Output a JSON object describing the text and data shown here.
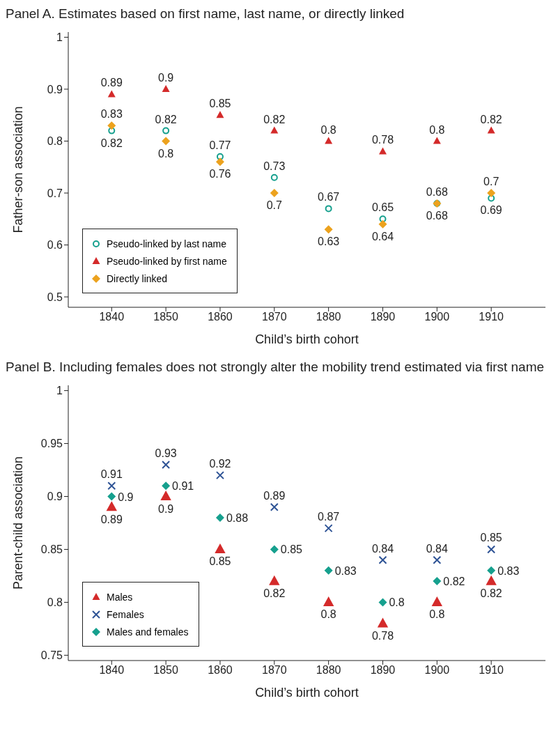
{
  "chart_data": [
    {
      "type": "scatter",
      "title": "Panel A. Estimates based on first name, last name, or directly linked",
      "xlabel": "Child’s birth cohort",
      "ylabel": "Father-son association",
      "x": [
        1840,
        1850,
        1860,
        1870,
        1880,
        1890,
        1900,
        1910
      ],
      "xlim": [
        1832,
        1920
      ],
      "xticks": [
        1840,
        1850,
        1860,
        1870,
        1880,
        1890,
        1900,
        1910
      ],
      "ylim": [
        0.48,
        1.01
      ],
      "yticks": [
        0.5,
        0.6,
        0.7,
        0.8,
        0.9,
        1
      ],
      "legend": "bottom left",
      "data_labels": true,
      "series": [
        {
          "name": "Pseudo-linked by last name",
          "color": "#16a08e",
          "marker": "circle",
          "values": [
            0.82,
            0.82,
            0.77,
            0.73,
            0.67,
            0.65,
            0.68,
            0.69
          ]
        },
        {
          "name": "Pseudo-linked by first name",
          "color": "#d42a2a",
          "marker": "triangle",
          "values": [
            0.89,
            0.9,
            0.85,
            0.82,
            0.8,
            0.78,
            0.8,
            0.82
          ]
        },
        {
          "name": "Directly linked",
          "color": "#eca21e",
          "marker": "diamond",
          "values": [
            0.83,
            0.8,
            0.76,
            0.7,
            0.63,
            0.64,
            0.68,
            0.7
          ]
        }
      ]
    },
    {
      "type": "scatter",
      "title": "Panel B. Including females does not strongly alter the mobility trend estimated via first name",
      "xlabel": "Child’s birth cohort",
      "ylabel": "Parent-child association",
      "x": [
        1840,
        1850,
        1860,
        1870,
        1880,
        1890,
        1900,
        1910
      ],
      "xlim": [
        1832,
        1920
      ],
      "xticks": [
        1840,
        1850,
        1860,
        1870,
        1880,
        1890,
        1900,
        1910
      ],
      "ylim": [
        0.745,
        1.005
      ],
      "yticks": [
        0.75,
        0.8,
        0.85,
        0.9,
        0.95,
        1
      ],
      "legend": "bottom left",
      "data_labels": true,
      "series": [
        {
          "name": "Males",
          "color": "#d42a2a",
          "marker": "triangle",
          "values": [
            0.89,
            0.9,
            0.85,
            0.82,
            0.8,
            0.78,
            0.8,
            0.82
          ]
        },
        {
          "name": "Females",
          "color": "#2e5395",
          "marker": "cross",
          "values": [
            0.91,
            0.93,
            0.92,
            0.89,
            0.87,
            0.84,
            0.84,
            0.85
          ]
        },
        {
          "name": "Males and females",
          "color": "#16a08e",
          "marker": "diamond",
          "values": [
            0.9,
            0.91,
            0.88,
            0.85,
            0.83,
            0.8,
            0.82,
            0.83
          ]
        }
      ]
    }
  ]
}
